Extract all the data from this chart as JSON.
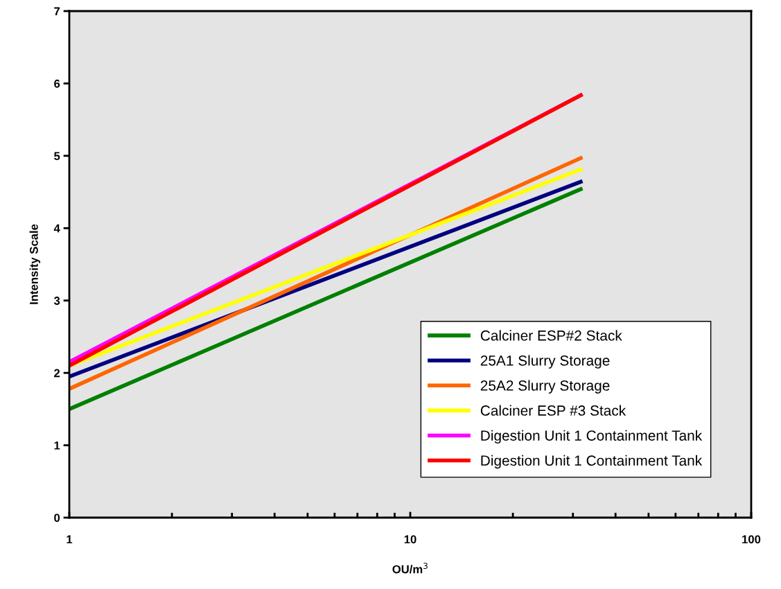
{
  "chart_data": {
    "type": "line",
    "xlabel": "OU/m$^{3}$",
    "ylabel": "Intensity Scale",
    "log": "x",
    "xlim": [
      1,
      100
    ],
    "xticks": [
      1,
      10,
      100
    ],
    "ylim": [
      0,
      7
    ],
    "yticks": [
      0,
      1,
      2,
      3,
      4,
      5,
      6,
      7
    ],
    "grid": false,
    "legend": "bottom right",
    "marker": "none",
    "line_style": "solid",
    "x": [
      1,
      32
    ],
    "series": [
      {
        "name": "Calciner ESP#2 Stack",
        "color": "#008000",
        "values": [
          1.5,
          4.55
        ]
      },
      {
        "name": "25A1 Slurry Storage",
        "color": "#000080",
        "values": [
          1.95,
          4.65
        ]
      },
      {
        "name": "25A2 Slurry Storage",
        "color": "#ff6600",
        "values": [
          1.78,
          4.98
        ]
      },
      {
        "name": "Calciner ESP #3 Stack",
        "color": "#ffff00",
        "values": [
          2.1,
          4.82
        ]
      },
      {
        "name": "Digestion Unit 1 Containment Tank",
        "color": "#ff00ff",
        "values": [
          2.15,
          5.85
        ]
      },
      {
        "name": "Digestion Unit 1 Containment Tank",
        "color": "#ff0000",
        "values": [
          2.1,
          5.85
        ]
      }
    ]
  }
}
